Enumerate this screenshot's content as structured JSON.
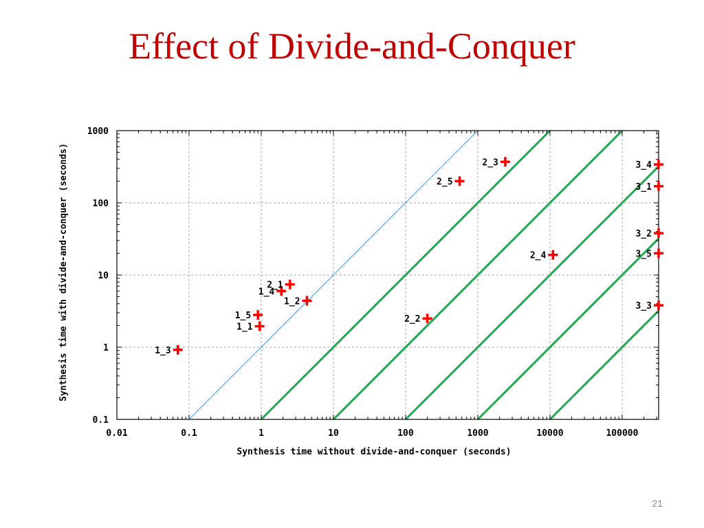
{
  "slide": {
    "title": "Effect of Divide-and-Conquer",
    "page_number": "21"
  },
  "chart_data": {
    "type": "scatter",
    "xlabel": "Synthesis time without divide-and-conquer (seconds)",
    "ylabel": "Synthesis time with divide-and-conquer (seconds)",
    "xscale": "log",
    "yscale": "log",
    "xlim": [
      0.01,
      320000
    ],
    "ylim": [
      0.1,
      1000
    ],
    "x_ticks": [
      0.01,
      0.1,
      1,
      10,
      100,
      1000,
      10000,
      100000
    ],
    "x_tick_labels": [
      "0.01",
      "0.1",
      "1",
      "10",
      "100",
      "1000",
      "10000",
      "100000"
    ],
    "y_ticks": [
      0.1,
      1,
      10,
      100,
      1000
    ],
    "y_tick_labels": [
      "0.1",
      "1",
      "10",
      "100",
      "1000"
    ],
    "grid": true,
    "marker_color": "#ff0000",
    "points": [
      {
        "label": "1_1",
        "x": 0.95,
        "y": 1.95
      },
      {
        "label": "1_2",
        "x": 4.3,
        "y": 4.4
      },
      {
        "label": "1_3",
        "x": 0.07,
        "y": 0.92
      },
      {
        "label": "1_4",
        "x": 1.9,
        "y": 6.0
      },
      {
        "label": "1_5",
        "x": 0.9,
        "y": 2.8
      },
      {
        "label": "2_1",
        "x": 2.5,
        "y": 7.4
      },
      {
        "label": "2_2",
        "x": 200,
        "y": 2.5
      },
      {
        "label": "2_3",
        "x": 2400,
        "y": 370
      },
      {
        "label": "2_4",
        "x": 11000,
        "y": 19
      },
      {
        "label": "2_5",
        "x": 560,
        "y": 200
      },
      {
        "label": "3_1",
        "x": 320000,
        "y": 170
      },
      {
        "label": "3_2",
        "x": 320000,
        "y": 38
      },
      {
        "label": "3_3",
        "x": 320000,
        "y": 3.8
      },
      {
        "label": "3_4",
        "x": 320000,
        "y": 340
      },
      {
        "label": "3_5",
        "x": 320000,
        "y": 20
      }
    ],
    "reference_lines": [
      {
        "kind": "parity",
        "ratio": 1,
        "color": "#3a96dd"
      },
      {
        "kind": "speedup",
        "ratio": 10,
        "color": "#1fa84f"
      },
      {
        "kind": "speedup",
        "ratio": 100,
        "color": "#1fa84f"
      },
      {
        "kind": "speedup",
        "ratio": 1000,
        "color": "#1fa84f"
      },
      {
        "kind": "speedup",
        "ratio": 10000,
        "color": "#1fa84f"
      },
      {
        "kind": "speedup",
        "ratio": 100000,
        "color": "#1fa84f"
      }
    ]
  }
}
